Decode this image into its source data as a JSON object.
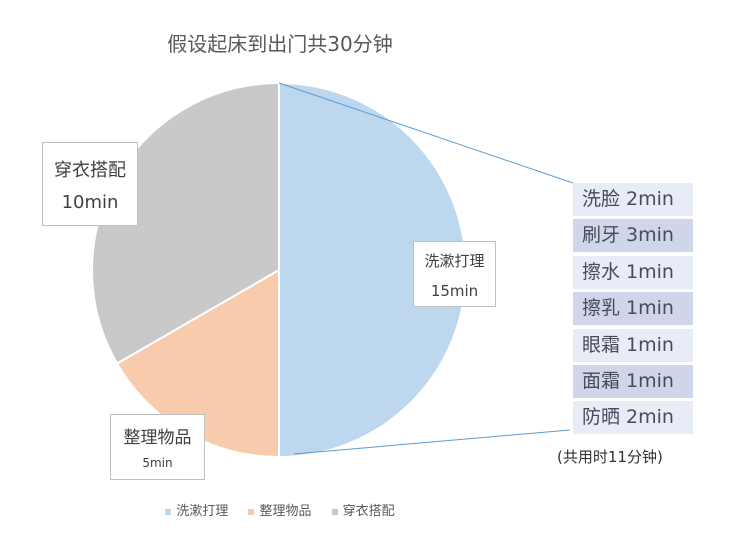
{
  "chart_data": {
    "type": "pie",
    "title": "假设起床到出门共30分钟",
    "categories": [
      "洗漱打理",
      "整理物品",
      "穿衣搭配"
    ],
    "values": [
      15,
      5,
      10
    ],
    "colors": [
      "#bdd7ee",
      "#f8cbad",
      "#c9c9c9"
    ],
    "data_labels": [
      {
        "name": "洗漱打理",
        "value": "15min"
      },
      {
        "name": "整理物品",
        "value": "5min"
      },
      {
        "name": "穿衣搭配",
        "value": "10min"
      }
    ],
    "legend_position": "bottom",
    "breakdown": {
      "parent": "洗漱打理",
      "items": [
        "洗脸 2min",
        "刷牙 3min",
        "擦水 1min",
        "擦乳 1min",
        "眼霜 1min",
        "面霜 1min",
        "防晒 2min"
      ],
      "total_note": "(共用时11分钟)"
    }
  }
}
